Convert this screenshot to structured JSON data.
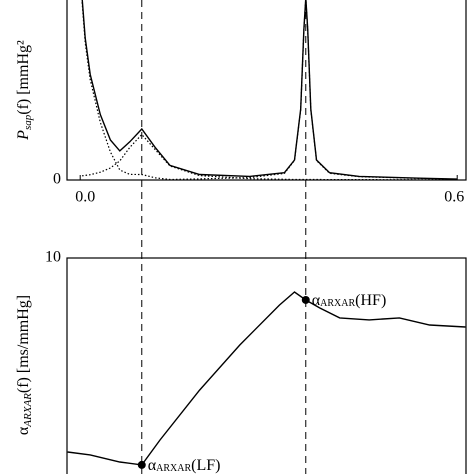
{
  "chart_data": [
    {
      "type": "line",
      "ylabel": {
        "main": "P",
        "sub": "sap",
        "rest": "(f) [mmHg²"
      },
      "xlim": [
        -0.021,
        0.614
      ],
      "xticks": [
        {
          "value": 0,
          "label": "0.0"
        },
        {
          "value": 0.6,
          "label": "0.6"
        }
      ],
      "ylim": [
        0,
        1
      ],
      "yticks": [
        0
      ],
      "x": [
        0.003,
        0.008,
        0.016,
        0.032,
        0.048,
        0.063,
        0.079,
        0.098,
        0.119,
        0.143,
        0.19,
        0.27,
        0.325,
        0.341,
        0.351,
        0.356,
        0.359,
        0.362,
        0.367,
        0.376,
        0.397,
        0.444,
        0.54,
        0.6
      ],
      "series": [
        {
          "color": "#000000",
          "style": "solid",
          "values": [
            1.0,
            0.78,
            0.58,
            0.36,
            0.22,
            0.16,
            0.21,
            0.28,
            0.18,
            0.08,
            0.03,
            0.02,
            0.04,
            0.11,
            0.39,
            0.83,
            1.0,
            0.83,
            0.39,
            0.11,
            0.04,
            0.02,
            0.01,
            0.005
          ]
        },
        {
          "color": "#000000",
          "style": "dotted",
          "values": [
            0.023,
            0.025,
            0.029,
            0.043,
            0.066,
            0.105,
            0.179,
            0.25,
            0.168,
            0.077,
            0.024,
            0.007,
            0.004,
            0.003,
            0.003,
            0.003,
            0.003,
            0.003,
            0.003,
            0.003,
            0.002,
            0.002,
            0.001,
            0.001
          ]
        },
        {
          "color": "#000000",
          "style": "dotted",
          "values": [
            0.977,
            0.755,
            0.551,
            0.317,
            0.154,
            0.055,
            0.031,
            0.03,
            0.012,
            0.003,
            0.006,
            0.013,
            0.036,
            0.107,
            0.387,
            0.827,
            0.997,
            0.827,
            0.387,
            0.107,
            0.037,
            0.018,
            0.009,
            0.004
          ]
        }
      ]
    },
    {
      "type": "line",
      "ylabel": {
        "main": "α",
        "sub": "ARXAR",
        "rest": "(f) [ms/mmHg]"
      },
      "xlim": [
        -0.021,
        0.614
      ],
      "xticks": [],
      "ylim": [
        0,
        10
      ],
      "yticks": [
        10
      ],
      "x": [
        -0.02,
        0.016,
        0.063,
        0.098,
        0.127,
        0.19,
        0.254,
        0.317,
        0.341,
        0.359,
        0.381,
        0.413,
        0.46,
        0.508,
        0.556,
        0.613
      ],
      "series": [
        {
          "color": "#000000",
          "style": "solid",
          "values": [
            1.26,
            1.13,
            0.81,
            0.68,
            1.8,
            4.05,
            6.08,
            7.88,
            8.47,
            8.11,
            7.75,
            7.3,
            7.21,
            7.3,
            6.98,
            6.89
          ]
        }
      ],
      "annotations": [
        {
          "text": "α",
          "sub": "ARXAR",
          "suffix": "(HF)",
          "x": 0.359,
          "y": 8.11
        },
        {
          "text": "α",
          "sub": "ARXAR",
          "suffix": "(LF)",
          "x": 0.098,
          "y": 0.68
        }
      ]
    }
  ]
}
